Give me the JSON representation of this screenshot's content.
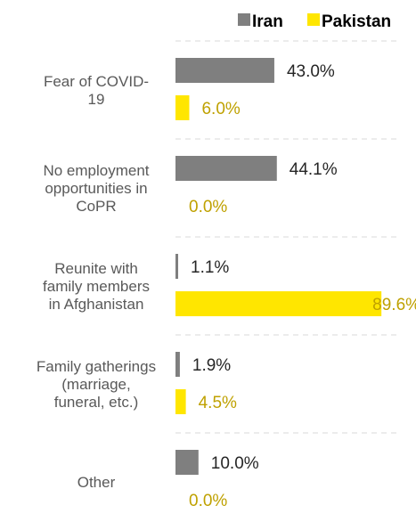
{
  "chart_data": {
    "type": "bar",
    "orientation": "horizontal",
    "categories": [
      [
        "Fear of COVID-",
        "19"
      ],
      [
        "No employment",
        "opportunities in",
        "CoPR"
      ],
      [
        "Reunite with",
        "family members",
        "in Afghanistan"
      ],
      [
        "Family gatherings",
        "(marriage,",
        "funeral, etc.)"
      ],
      [
        "Other"
      ]
    ],
    "series": [
      {
        "name": "Iran",
        "values": [
          43.0,
          44.1,
          1.1,
          1.9,
          10.0
        ],
        "labels": [
          "43.0%",
          "44.1%",
          "1.1%",
          "1.9%",
          "10.0%"
        ],
        "color": "#7f7f7f",
        "label_color": "#262626"
      },
      {
        "name": "Pakistan",
        "values": [
          6.0,
          0.0,
          89.6,
          4.5,
          0.0
        ],
        "labels": [
          "6.0%",
          "0.0%",
          "89.6%",
          "4.5%",
          "0.0%"
        ],
        "color": "#ffe600",
        "label_color": "#bfa100"
      }
    ],
    "xlim": [
      0,
      100
    ],
    "legend_position": "top-right",
    "grid": "dashed horizontal separators"
  }
}
